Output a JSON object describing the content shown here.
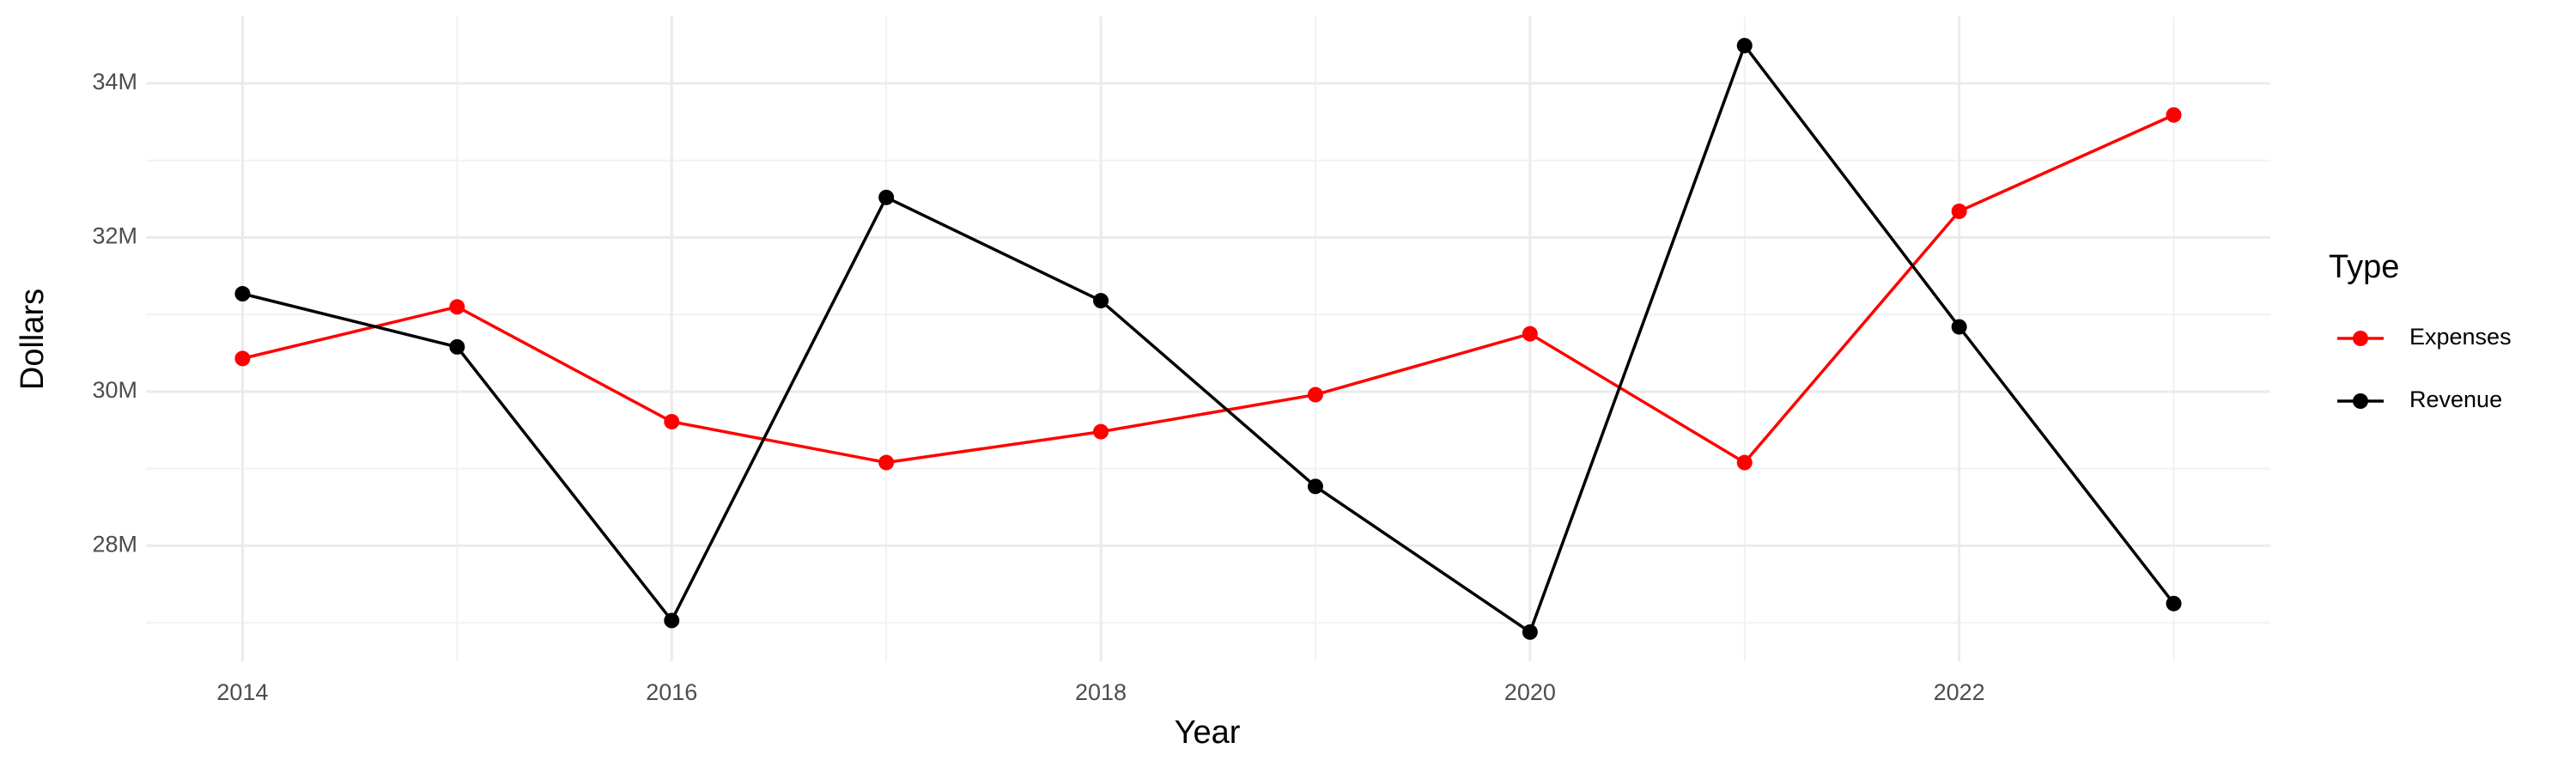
{
  "chart_data": {
    "type": "line",
    "x_label": "Year",
    "y_label": "Dollars",
    "legend_title": "Type",
    "legend_position": "right",
    "x": [
      2014,
      2015,
      2016,
      2017,
      2018,
      2019,
      2020,
      2021,
      2022,
      2023
    ],
    "series": [
      {
        "name": "Expenses",
        "color": "#ff0000",
        "values": [
          30430000,
          31100000,
          29610000,
          29080000,
          29480000,
          29960000,
          30750000,
          29080000,
          32340000,
          33590000
        ]
      },
      {
        "name": "Revenue",
        "color": "#000000",
        "values": [
          31270000,
          30580000,
          27030000,
          32520000,
          31180000,
          28770000,
          26880000,
          34490000,
          30840000,
          27250000
        ]
      }
    ],
    "xlim": [
      2013.55,
      2023.45
    ],
    "xticks": [
      2014,
      2016,
      2018,
      2020,
      2022
    ],
    "ylim": [
      26500000,
      34870000
    ],
    "yticks": [
      {
        "value": 28000000,
        "label": "28M"
      },
      {
        "value": 30000000,
        "label": "30M"
      },
      {
        "value": 32000000,
        "label": "32M"
      },
      {
        "value": 34000000,
        "label": "34M"
      }
    ],
    "grid": true
  }
}
